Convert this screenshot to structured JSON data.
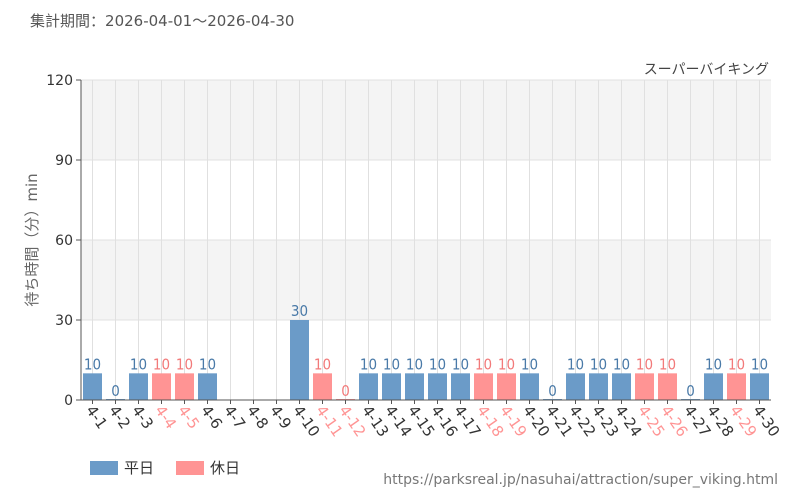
{
  "period": {
    "label": "集計期間",
    "colon": "：",
    "start": "2026-04-01",
    "sep": "～",
    "end": "2026-04-30"
  },
  "legend": {
    "weekday": "平日",
    "holiday": "休日"
  },
  "source": "https://parksreal.jp/nasuhai/attraction/super_viking.html",
  "colors": {
    "weekday": "#6b9bc8",
    "holiday": "#ff9494",
    "weekday_label": "#4a7aa8",
    "holiday_label": "#f27a7a",
    "band": "#f4f4f4",
    "grid": "#e0e0e0"
  },
  "chart_data": {
    "type": "bar",
    "title": "スーパーバイキング",
    "xlabel": "",
    "ylabel": "待ち時間（分）min",
    "ylim": [
      0,
      120
    ],
    "yticks": [
      0,
      30,
      60,
      90,
      120
    ],
    "grid": true,
    "categories": [
      "4-1",
      "4-2",
      "4-3",
      "4-4",
      "4-5",
      "4-6",
      "4-7",
      "4-8",
      "4-9",
      "4-10",
      "4-11",
      "4-12",
      "4-13",
      "4-14",
      "4-15",
      "4-16",
      "4-17",
      "4-18",
      "4-19",
      "4-20",
      "4-21",
      "4-22",
      "4-23",
      "4-24",
      "4-25",
      "4-26",
      "4-27",
      "4-28",
      "4-29",
      "4-30"
    ],
    "values": [
      10,
      0,
      10,
      10,
      10,
      10,
      null,
      null,
      null,
      30,
      10,
      0,
      10,
      10,
      10,
      10,
      10,
      10,
      10,
      10,
      0,
      10,
      10,
      10,
      10,
      10,
      0,
      10,
      10,
      10
    ],
    "day_type": [
      "weekday",
      "weekday",
      "weekday",
      "holiday",
      "holiday",
      "weekday",
      "weekday",
      "weekday",
      "weekday",
      "weekday",
      "holiday",
      "holiday",
      "weekday",
      "weekday",
      "weekday",
      "weekday",
      "weekday",
      "holiday",
      "holiday",
      "weekday",
      "weekday",
      "weekday",
      "weekday",
      "weekday",
      "holiday",
      "holiday",
      "weekday",
      "weekday",
      "holiday",
      "weekday"
    ]
  }
}
